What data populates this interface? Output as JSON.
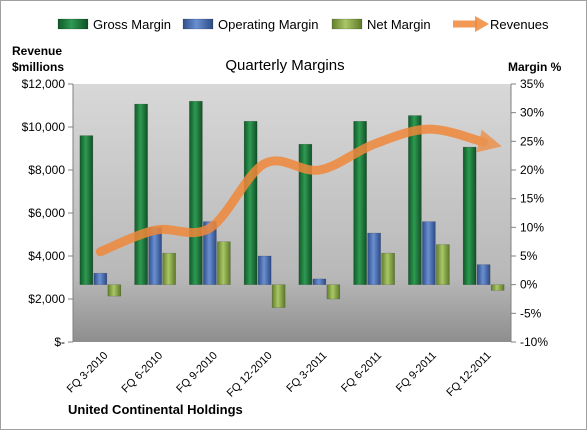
{
  "chart_data": {
    "type": "bar",
    "title": "Quarterly Margins",
    "company": "United Continental Holdings",
    "left_axis_title": [
      "Revenue",
      "$millions"
    ],
    "right_axis_title": "Margin %",
    "categories": [
      "FQ 3-2010",
      "FQ 6-2010",
      "FQ 9-2010",
      "FQ 12-2010",
      "FQ 3-2011",
      "FQ 6-2011",
      "FQ 9-2011",
      "FQ 12-2011"
    ],
    "left_axis": {
      "min": 0,
      "max": 12000,
      "step": 2000,
      "tick_labels": [
        "$-",
        "$2,000",
        "$4,000",
        "$6,000",
        "$8,000",
        "$10,000",
        "$12,000"
      ]
    },
    "right_axis": {
      "min": -10,
      "max": 35,
      "step": 5,
      "tick_labels": [
        "-10%",
        "-5%",
        "0%",
        "5%",
        "10%",
        "15%",
        "20%",
        "25%",
        "30%",
        "35%"
      ]
    },
    "series": [
      {
        "name": "Gross Margin",
        "axis": "right",
        "kind": "bar",
        "color": "#1f7a3e",
        "values": [
          26,
          31.5,
          32,
          28.5,
          24.5,
          28.5,
          29.5,
          24
        ]
      },
      {
        "name": "Operating Margin",
        "axis": "right",
        "kind": "bar",
        "color": "#4a6fb5",
        "values": [
          2,
          10,
          11,
          5,
          1,
          9,
          11,
          3.5
        ]
      },
      {
        "name": "Net Margin",
        "axis": "right",
        "kind": "bar",
        "color": "#8eb04a",
        "values": [
          -2,
          5.5,
          7.5,
          -4,
          -2.5,
          5.5,
          7,
          -1
        ]
      },
      {
        "name": "Revenues",
        "axis": "left",
        "kind": "line",
        "color": "#f0883a",
        "values": [
          4200,
          5200,
          5300,
          8300,
          8000,
          9200,
          9900,
          9300
        ]
      }
    ],
    "legend_position": "top",
    "grid": false
  }
}
